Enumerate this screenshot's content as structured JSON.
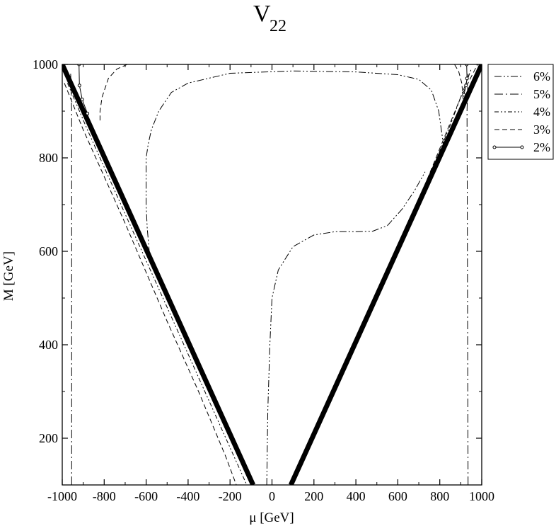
{
  "chart_data": {
    "type": "line",
    "title_main": "V",
    "title_sub": "22",
    "xlabel": "μ [GeV]",
    "ylabel": "M [GeV]",
    "xlim": [
      -1000,
      1000
    ],
    "ylim": [
      100,
      1000
    ],
    "xticks": [
      -1000,
      -800,
      -600,
      -400,
      -200,
      0,
      200,
      400,
      600,
      800,
      1000
    ],
    "yticks": [
      200,
      400,
      600,
      800,
      1000
    ],
    "legend_position": "right, outside plot, top",
    "boundary_lines": [
      {
        "points": [
          [
            -1000,
            1000
          ],
          [
            -90,
            100
          ]
        ],
        "style": "thick"
      },
      {
        "points": [
          [
            90,
            100
          ],
          [
            1000,
            1000
          ]
        ],
        "style": "thick"
      }
    ],
    "series": [
      {
        "name": "6%",
        "dash": "dashdotdot",
        "paths": [
          [
            [
              -25,
              100
            ],
            [
              -20,
              260
            ],
            [
              -10,
              400
            ],
            [
              0,
              500
            ],
            [
              30,
              560
            ],
            [
              100,
              610
            ],
            [
              200,
              635
            ],
            [
              300,
              642
            ],
            [
              400,
              642
            ],
            [
              480,
              643
            ],
            [
              550,
              655
            ],
            [
              620,
              690
            ],
            [
              680,
              730
            ],
            [
              730,
              770
            ]
          ],
          [
            [
              820,
              820
            ],
            [
              795,
              900
            ],
            [
              760,
              945
            ],
            [
              700,
              968
            ],
            [
              600,
              978
            ],
            [
              400,
              984
            ],
            [
              100,
              986
            ],
            [
              -200,
              981
            ],
            [
              -400,
              960
            ],
            [
              -480,
              940
            ],
            [
              -540,
              900
            ],
            [
              -575,
              860
            ],
            [
              -590,
              830
            ],
            [
              -600,
              800
            ],
            [
              -600,
              700
            ],
            [
              -595,
              650
            ],
            [
              -585,
              600
            ]
          ]
        ]
      },
      {
        "name": "5%",
        "dash": "dashdot",
        "paths": [
          [
            [
              -955,
              100
            ],
            [
              -955,
              900
            ],
            [
              -960,
              980
            ]
          ],
          [
            [
              935,
              100
            ],
            [
              930,
              900
            ],
            [
              935,
              980
            ]
          ]
        ]
      },
      {
        "name": "4%",
        "dash": "dashdotdotfine",
        "paths": [
          [
            [
              -975,
              960
            ],
            [
              -880,
              860
            ],
            [
              -700,
              680
            ],
            [
              -500,
              480
            ],
            [
              -300,
              280
            ],
            [
              -150,
              130
            ],
            [
              -120,
              100
            ]
          ],
          [
            [
              100,
              100
            ],
            [
              250,
              250
            ],
            [
              400,
              400
            ],
            [
              600,
              600
            ],
            [
              750,
              760
            ],
            [
              850,
              870
            ],
            [
              950,
              990
            ]
          ]
        ]
      },
      {
        "name": "3%",
        "dash": "dashed",
        "paths": [
          [
            [
              -990,
              960
            ],
            [
              -900,
              860
            ],
            [
              -700,
              660
            ],
            [
              -500,
              450
            ],
            [
              -350,
              300
            ],
            [
              -220,
              160
            ],
            [
              -170,
              100
            ]
          ],
          [
            [
              85,
              100
            ],
            [
              200,
              210
            ],
            [
              400,
              400
            ],
            [
              600,
              600
            ],
            [
              800,
              820
            ],
            [
              900,
              930
            ],
            [
              980,
              1000
            ]
          ],
          [
            [
              -690,
              1000
            ],
            [
              -740,
              990
            ],
            [
              -780,
              970
            ],
            [
              -810,
              930
            ],
            [
              -820,
              900
            ],
            [
              -820,
              880
            ]
          ],
          [
            [
              870,
              1000
            ],
            [
              890,
              985
            ],
            [
              905,
              960
            ],
            [
              910,
              935
            ],
            [
              912,
              920
            ]
          ]
        ]
      },
      {
        "name": "2%",
        "dash": "solid-dot",
        "paths": [
          [
            [
              -920,
              1000
            ],
            [
              -918,
              955
            ],
            [
              -905,
              925
            ],
            [
              -880,
              895
            ]
          ],
          [
            [
              915,
              935
            ],
            [
              925,
              955
            ],
            [
              930,
              970
            ],
            [
              928,
              1000
            ]
          ]
        ]
      }
    ]
  }
}
